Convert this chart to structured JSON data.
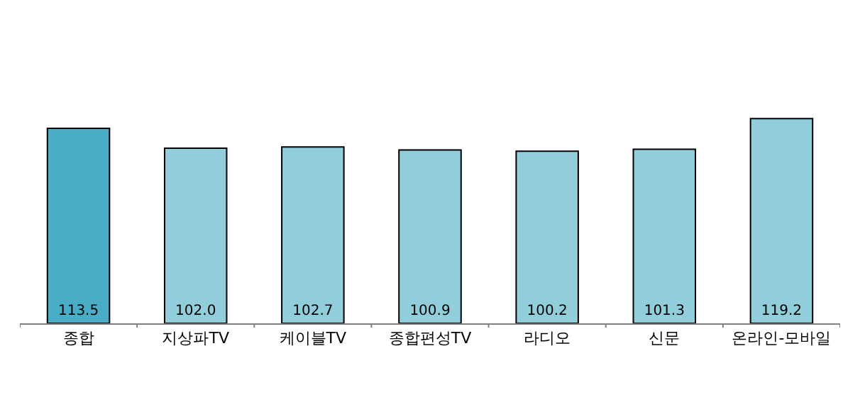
{
  "chart_data": {
    "type": "bar",
    "categories": [
      "종합",
      "지상파TV",
      "케이블TV",
      "종합편성TV",
      "라디오",
      "신문",
      "온라인-모바일"
    ],
    "values": [
      113.5,
      102.0,
      102.7,
      100.9,
      100.2,
      101.3,
      119.2
    ],
    "value_labels": [
      "113.5",
      "102.0",
      "102.7",
      "100.9",
      "100.2",
      "101.3",
      "119.2"
    ],
    "colors": [
      "#4bacc6",
      "#92cddc",
      "#92cddc",
      "#92cddc",
      "#92cddc",
      "#92cddc",
      "#92cddc"
    ],
    "tick_labels": "x"
  }
}
